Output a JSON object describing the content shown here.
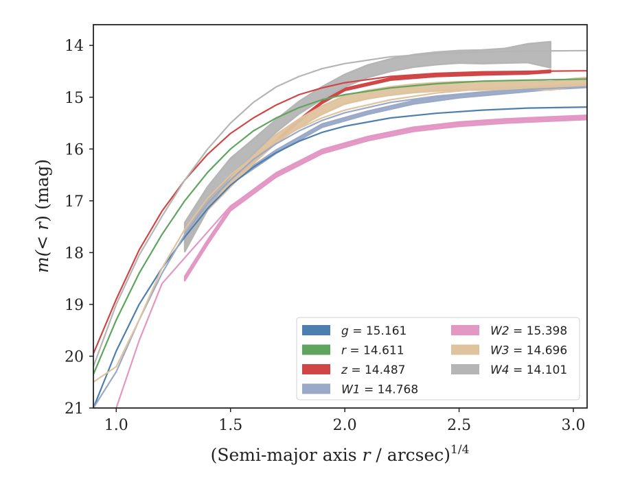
{
  "chart_data": {
    "type": "line",
    "title": "",
    "xlabel": {
      "prefix": "(Semi-major axis ",
      "var": "r",
      "suffix": " / arcsec)",
      "sup": "1/4"
    },
    "ylabel": {
      "prefix": "m(< ",
      "var": "r",
      "suffix": ") (mag)"
    },
    "xlim": [
      0.9,
      3.06
    ],
    "ylim": [
      21,
      13.6
    ],
    "y_inverted": true,
    "xticks": [
      1.0,
      1.5,
      2.0,
      2.5,
      3.0
    ],
    "xtick_labels": [
      "1.0",
      "1.5",
      "2.0",
      "2.5",
      "3.0"
    ],
    "yticks": [
      14,
      15,
      16,
      17,
      18,
      19,
      20,
      21
    ],
    "ytick_labels": [
      "14",
      "15",
      "16",
      "17",
      "18",
      "19",
      "20",
      "21"
    ],
    "grid": false,
    "legend": {
      "placement": "lower-right",
      "columns": 2
    },
    "series": [
      {
        "name": "g",
        "legend_value": "15.161",
        "color": "#4c7faf",
        "kind": "model",
        "x": [
          0.9,
          1.0,
          1.1,
          1.2,
          1.3,
          1.4,
          1.5,
          1.6,
          1.7,
          1.8,
          1.9,
          2.0,
          2.2,
          2.4,
          2.6,
          2.8,
          3.06
        ],
        "y": [
          21.0,
          19.9,
          19.0,
          18.3,
          17.7,
          17.15,
          16.7,
          16.35,
          16.07,
          15.85,
          15.68,
          15.56,
          15.4,
          15.31,
          15.25,
          15.21,
          15.19
        ]
      },
      {
        "name": "r",
        "legend_value": "14.611",
        "color": "#5fa55f",
        "kind": "model",
        "x": [
          0.9,
          1.0,
          1.1,
          1.2,
          1.3,
          1.4,
          1.5,
          1.6,
          1.7,
          1.8,
          1.9,
          2.0,
          2.2,
          2.4,
          2.6,
          2.8,
          3.06
        ],
        "y": [
          20.35,
          19.3,
          18.4,
          17.65,
          17.0,
          16.45,
          16.0,
          15.65,
          15.4,
          15.2,
          15.05,
          14.95,
          14.82,
          14.74,
          14.69,
          14.67,
          14.65
        ]
      },
      {
        "name": "z",
        "legend_value": "14.487",
        "color": "#d04545",
        "kind": "model",
        "x": [
          0.9,
          1.0,
          1.1,
          1.2,
          1.3,
          1.4,
          1.5,
          1.6,
          1.7,
          1.8,
          1.9,
          2.0,
          2.2,
          2.4,
          2.6,
          2.8,
          3.06
        ],
        "y": [
          19.95,
          18.9,
          17.95,
          17.2,
          16.6,
          16.1,
          15.7,
          15.4,
          15.15,
          14.95,
          14.82,
          14.72,
          14.6,
          14.54,
          14.51,
          14.5,
          14.49
        ]
      },
      {
        "name": "W1",
        "legend_value": "14.768",
        "color": "#9aa9c8",
        "kind": "model",
        "x": [
          0.9,
          1.0,
          1.1,
          1.2,
          1.3,
          1.4,
          1.5,
          1.6,
          1.7,
          1.8,
          1.9,
          2.0,
          2.2,
          2.4,
          2.6,
          2.8,
          3.06
        ],
        "y": [
          21.0,
          20.3,
          19.3,
          18.4,
          17.65,
          17.05,
          16.6,
          16.2,
          15.9,
          15.65,
          15.45,
          15.3,
          15.1,
          14.98,
          14.9,
          14.85,
          14.8
        ]
      },
      {
        "name": "W2",
        "legend_value": "15.398",
        "color": "#e397c4",
        "kind": "model",
        "x": [
          1.0,
          1.1,
          1.2,
          1.3,
          1.4,
          1.5,
          1.6,
          1.7,
          1.8,
          1.9,
          2.0,
          2.2,
          2.4,
          2.6,
          2.8,
          3.06
        ],
        "y": [
          21.0,
          19.7,
          18.6,
          18.1,
          17.6,
          17.1,
          16.8,
          16.5,
          16.25,
          16.05,
          15.9,
          15.68,
          15.55,
          15.47,
          15.43,
          15.4
        ]
      },
      {
        "name": "W3",
        "legend_value": "14.696",
        "color": "#dfc39e",
        "kind": "model",
        "x": [
          0.9,
          1.0,
          1.1,
          1.2,
          1.3,
          1.4,
          1.5,
          1.6,
          1.7,
          1.8,
          1.9,
          2.0,
          2.2,
          2.4,
          2.6,
          2.8,
          3.06
        ],
        "y": [
          20.5,
          20.2,
          19.3,
          18.3,
          17.55,
          16.95,
          16.5,
          16.15,
          15.85,
          15.6,
          15.4,
          15.25,
          15.05,
          14.92,
          14.84,
          14.79,
          14.76
        ]
      },
      {
        "name": "W4",
        "legend_value": "14.101",
        "color": "#b5b5b5",
        "kind": "model",
        "x": [
          0.9,
          1.0,
          1.1,
          1.2,
          1.3,
          1.4,
          1.5,
          1.6,
          1.7,
          1.8,
          1.9,
          2.0,
          2.2,
          2.4,
          2.6,
          2.8,
          3.06
        ],
        "y": [
          20.2,
          19.0,
          18.05,
          17.3,
          16.6,
          16.0,
          15.5,
          15.1,
          14.8,
          14.6,
          14.45,
          14.35,
          14.22,
          14.16,
          14.13,
          14.11,
          14.1
        ]
      },
      {
        "name": "z",
        "legend_value": "",
        "color": "#d04545",
        "kind": "observed",
        "x": [
          1.3,
          1.4,
          1.5,
          1.6,
          1.7,
          1.8,
          1.9,
          2.0,
          2.2,
          2.4,
          2.6,
          2.8,
          2.9
        ],
        "y": [
          17.65,
          16.98,
          16.6,
          16.25,
          15.85,
          15.45,
          15.1,
          14.85,
          14.65,
          14.58,
          14.55,
          14.53,
          14.5
        ],
        "yerr": [
          0.02,
          0.02,
          0.02,
          0.02,
          0.02,
          0.02,
          0.02,
          0.02,
          0.02,
          0.02,
          0.02,
          0.02,
          0.02
        ]
      },
      {
        "name": "W1",
        "legend_value": "",
        "color": "#9aa9c8",
        "kind": "observed",
        "x": [
          1.3,
          1.5,
          1.7,
          1.9,
          2.1,
          2.3,
          2.5,
          2.7,
          2.9,
          3.06
        ],
        "y": [
          17.6,
          16.65,
          16.05,
          15.55,
          15.3,
          15.1,
          14.98,
          14.9,
          14.82,
          14.78
        ],
        "yerr": [
          0.03,
          0.03,
          0.03,
          0.03,
          0.03,
          0.03,
          0.03,
          0.03,
          0.03,
          0.03
        ]
      },
      {
        "name": "W2",
        "legend_value": "",
        "color": "#e397c4",
        "kind": "observed",
        "x": [
          1.3,
          1.4,
          1.5,
          1.7,
          1.9,
          2.1,
          2.3,
          2.5,
          2.7,
          2.9,
          3.06
        ],
        "y": [
          18.5,
          17.8,
          17.15,
          16.5,
          16.05,
          15.8,
          15.62,
          15.52,
          15.46,
          15.42,
          15.39
        ],
        "yerr": [
          0.04,
          0.04,
          0.04,
          0.04,
          0.04,
          0.04,
          0.04,
          0.04,
          0.04,
          0.04,
          0.04
        ]
      },
      {
        "name": "W3",
        "legend_value": "",
        "color": "#dfc39e",
        "kind": "observed",
        "x": [
          1.3,
          1.4,
          1.5,
          1.6,
          1.7,
          1.8,
          1.9,
          2.0,
          2.1,
          2.2,
          2.3,
          2.4,
          2.5,
          2.6,
          2.7,
          2.8,
          2.9,
          3.0,
          3.06
        ],
        "y": [
          17.85,
          17.1,
          16.65,
          16.2,
          15.8,
          15.5,
          15.25,
          15.05,
          14.95,
          14.88,
          14.83,
          14.8,
          14.78,
          14.78,
          14.77,
          14.76,
          14.78,
          14.72,
          14.7
        ],
        "yerr": [
          0.1,
          0.08,
          0.08,
          0.08,
          0.08,
          0.08,
          0.08,
          0.08,
          0.08,
          0.08,
          0.08,
          0.08,
          0.08,
          0.08,
          0.08,
          0.08,
          0.08,
          0.08,
          0.08
        ]
      },
      {
        "name": "W4",
        "legend_value": "",
        "color": "#b5b5b5",
        "kind": "observed",
        "x": [
          1.3,
          1.4,
          1.5,
          1.6,
          1.7,
          1.8,
          1.9,
          2.0,
          2.1,
          2.2,
          2.3,
          2.4,
          2.5,
          2.6,
          2.7,
          2.8,
          2.9
        ],
        "y": [
          17.7,
          16.95,
          16.35,
          15.95,
          15.55,
          15.2,
          14.92,
          14.68,
          14.5,
          14.38,
          14.3,
          14.25,
          14.22,
          14.22,
          14.2,
          14.15,
          14.18
        ],
        "yerr": [
          0.28,
          0.22,
          0.17,
          0.14,
          0.12,
          0.12,
          0.12,
          0.12,
          0.12,
          0.12,
          0.12,
          0.12,
          0.12,
          0.13,
          0.14,
          0.18,
          0.25
        ]
      }
    ]
  }
}
